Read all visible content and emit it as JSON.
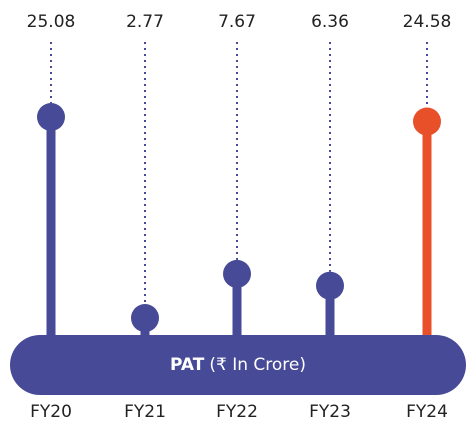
{
  "chart_data": {
    "type": "lollipop",
    "title": "PAT",
    "subtitle": "(₹ In Crore)",
    "categories": [
      "FY20",
      "FY21",
      "FY22",
      "FY23",
      "FY24"
    ],
    "values": [
      25.08,
      2.77,
      7.67,
      6.36,
      24.58
    ],
    "colors": [
      "#464a97",
      "#464a97",
      "#464a97",
      "#464a97",
      "#e8502a"
    ]
  }
}
